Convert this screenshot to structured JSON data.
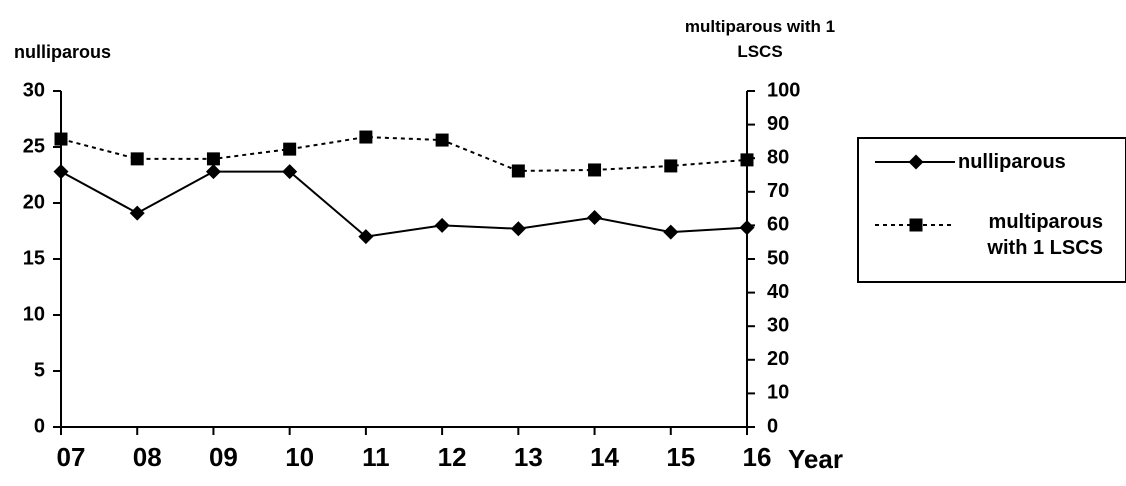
{
  "chart_data": {
    "type": "line",
    "categories": [
      "07",
      "08",
      "09",
      "10",
      "11",
      "12",
      "13",
      "14",
      "15",
      "16"
    ],
    "x_label": "Year",
    "y_label": "nulliparous",
    "y2_label": "multiparous with 1 LSCS",
    "ylim": [
      0,
      30
    ],
    "yticks": [
      0,
      5,
      10,
      15,
      20,
      25,
      30
    ],
    "y2lim": [
      0,
      100
    ],
    "y2ticks": [
      0,
      10,
      20,
      30,
      40,
      50,
      60,
      70,
      80,
      90,
      100
    ],
    "legend": "right",
    "series": [
      {
        "name": "nulliparous",
        "color": "#000000",
        "marker": "diamond",
        "dash": "solid",
        "values": [
          22.8,
          19.1,
          22.8,
          22.8,
          17.0,
          18.0,
          17.7,
          18.7,
          17.4,
          17.8
        ]
      },
      {
        "name": "multiparous with 1 LSCS",
        "color": "#000000",
        "marker": "square",
        "dash": "dotted",
        "axis": "y2",
        "values": [
          85.7,
          79.8,
          79.8,
          82.7,
          86.3,
          85.4,
          76.2,
          76.5,
          77.7,
          79.5
        ]
      }
    ]
  }
}
